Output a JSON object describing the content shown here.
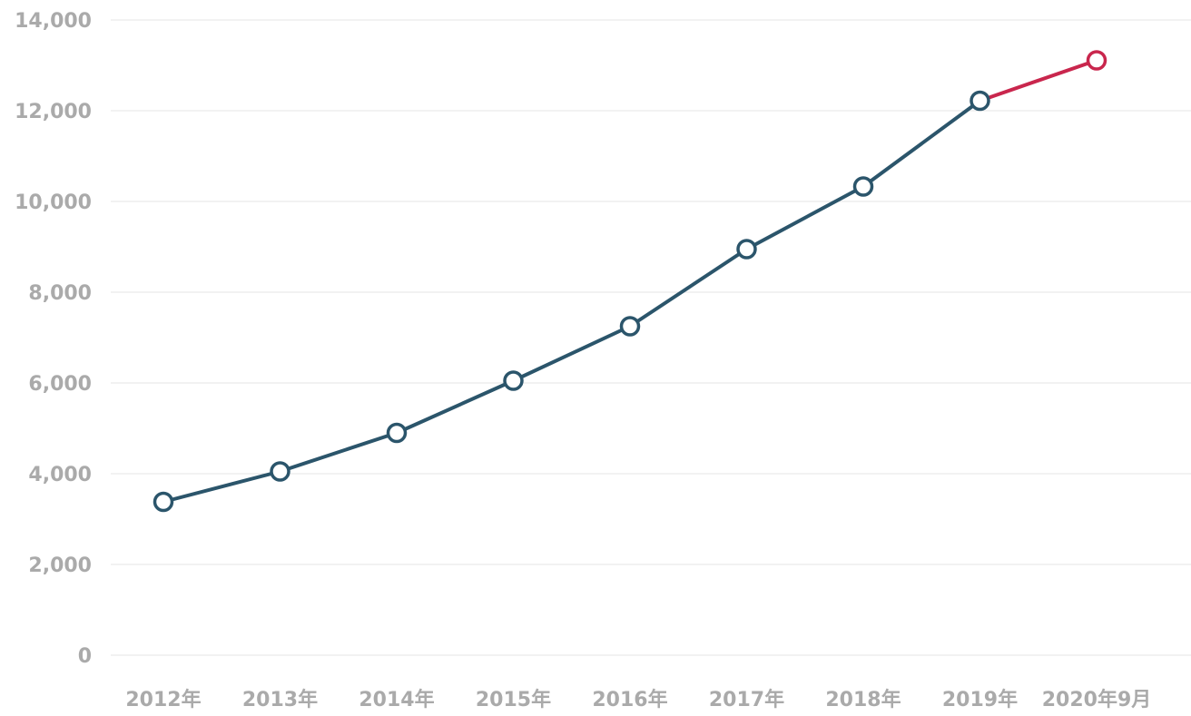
{
  "chart_data": {
    "type": "line",
    "title": "",
    "xlabel": "",
    "ylabel": "",
    "categories": [
      "2012年",
      "2013年",
      "2014年",
      "2015年",
      "2016年",
      "2017年",
      "2018年",
      "2019年",
      "2020年9月"
    ],
    "values": [
      3380,
      4050,
      4900,
      6050,
      7250,
      8950,
      10330,
      12220,
      13110
    ],
    "ylim": [
      0,
      14000
    ],
    "yticks": [
      0,
      2000,
      4000,
      6000,
      8000,
      10000,
      12000,
      14000
    ],
    "ytick_labels": [
      "0",
      "2,000",
      "4,000",
      "6,000",
      "8,000",
      "10,000",
      "12,000",
      "14,000"
    ],
    "grid": true,
    "legend": "none",
    "segments": [
      {
        "from_index": 0,
        "to_index": 7,
        "color": "#2b556b"
      },
      {
        "from_index": 7,
        "to_index": 8,
        "color": "#c9264d"
      }
    ],
    "colors": {
      "main": "#2b556b",
      "highlight": "#c9264d",
      "grid": "#e6e6e6",
      "tick_text": "#aaaaaa"
    }
  }
}
